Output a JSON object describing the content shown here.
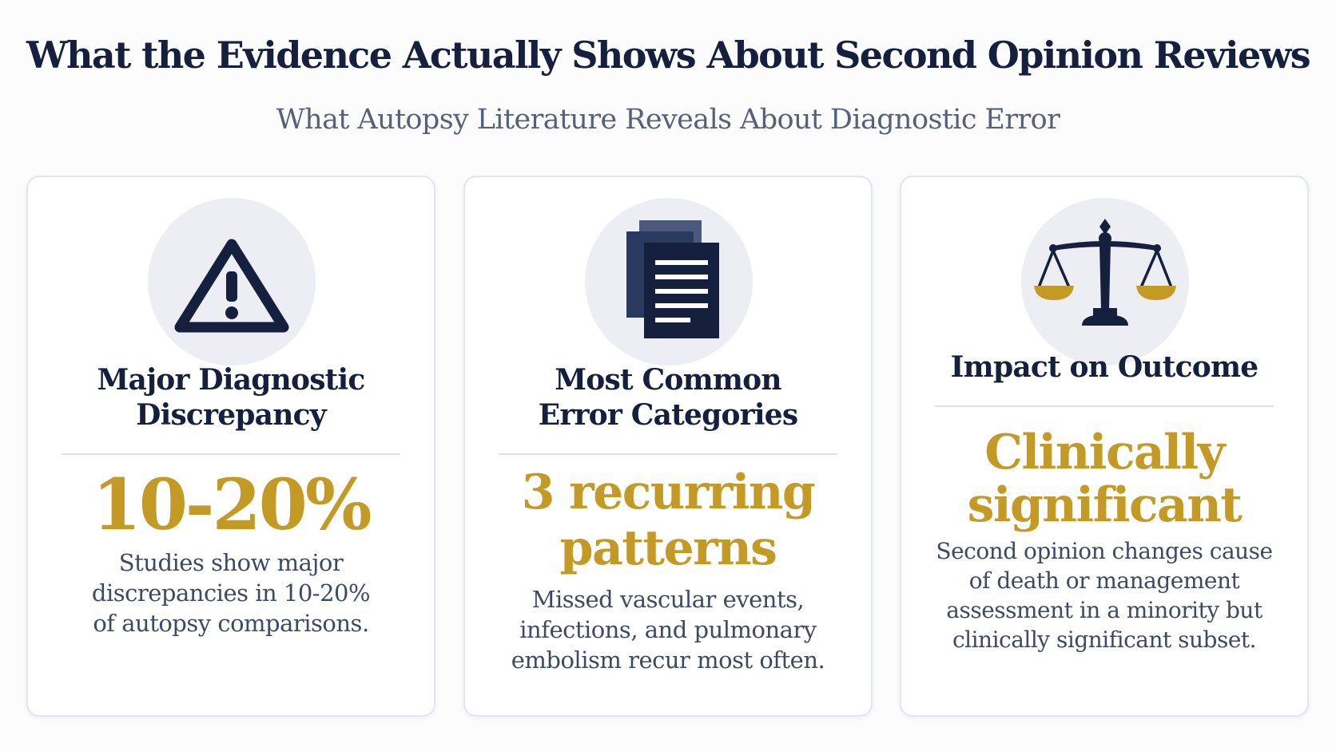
{
  "header": {
    "title": "What the Evidence Actually Shows About Second Opinion Reviews",
    "subtitle": "What Autopsy Literature Reveals About Diagnostic Error"
  },
  "colors": {
    "navy": "#14203d",
    "gold": "#c49a26",
    "icon_circle": "#eceef3"
  },
  "cards": [
    {
      "icon": "warning-triangle-icon",
      "heading_lines": [
        "Major Diagnostic",
        "Discrepancy"
      ],
      "stat_lines": [
        "10-20%"
      ],
      "description_lines": [
        "Studies show major",
        "discrepancies in 10-20%",
        "of autopsy comparisons."
      ]
    },
    {
      "icon": "documents-stack-icon",
      "heading_lines": [
        "Most Common",
        "Error Categories"
      ],
      "stat_lines": [
        "3 recurring",
        "patterns"
      ],
      "description_lines": [
        "Missed vascular events,",
        "infections, and pulmonary",
        "embolism recur most often."
      ]
    },
    {
      "icon": "balance-scale-icon",
      "heading_lines": [
        "Impact on Outcome"
      ],
      "stat_lines": [
        "Clinically",
        "significant"
      ],
      "description_lines": [
        "Second opinion changes cause",
        "of death or management",
        "assessment in a minority but",
        "clinically significant subset."
      ]
    }
  ]
}
